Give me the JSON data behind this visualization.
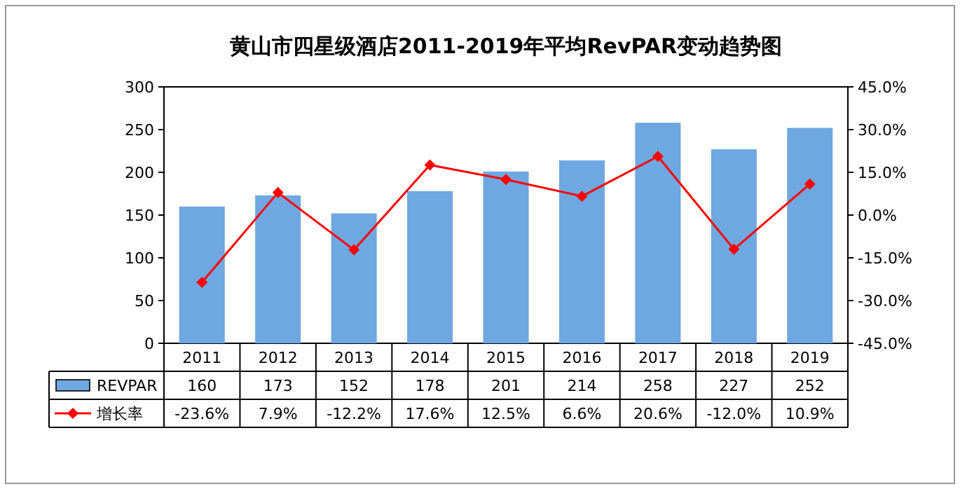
{
  "chart_data": {
    "type": "bar",
    "title": "黄山市四星级酒店2011-2019年平均RevPAR变动趋势图",
    "categories": [
      "2011",
      "2012",
      "2013",
      "2014",
      "2015",
      "2016",
      "2017",
      "2018",
      "2019"
    ],
    "series": [
      {
        "name": "REVPAR",
        "color": "#6fa8e0",
        "values": [
          160,
          173,
          152,
          178,
          201,
          214,
          258,
          227,
          252
        ],
        "value_labels": [
          "160",
          "173",
          "152",
          "178",
          "201",
          "214",
          "258",
          "227",
          "252"
        ]
      },
      {
        "name": "增长率",
        "type": "line",
        "axis": "y2",
        "color": "#ff0000",
        "marker": "diamond",
        "values": [
          -23.6,
          7.9,
          -12.2,
          17.6,
          12.5,
          6.6,
          20.6,
          -12.0,
          10.9
        ],
        "value_labels": [
          "-23.6%",
          "7.9%",
          "-12.2%",
          "17.6%",
          "12.5%",
          "6.6%",
          "20.6%",
          "-12.0%",
          "10.9%"
        ]
      }
    ],
    "ylim": [
      0,
      300
    ],
    "yticks": [
      0,
      50,
      100,
      150,
      200,
      250,
      300
    ],
    "y2lim": [
      -45,
      45
    ],
    "y2ticks": [
      {
        "value": -45,
        "label": "-45.0%"
      },
      {
        "value": -30,
        "label": "-30.0%"
      },
      {
        "value": -15,
        "label": "-15.0%"
      },
      {
        "value": 0,
        "label": "0.0%"
      },
      {
        "value": 15,
        "label": "15.0%"
      },
      {
        "value": 30,
        "label": "30.0%"
      },
      {
        "value": 45,
        "label": "45.0%"
      }
    ],
    "grid": false,
    "legend": "bottom",
    "data_labels": true
  }
}
